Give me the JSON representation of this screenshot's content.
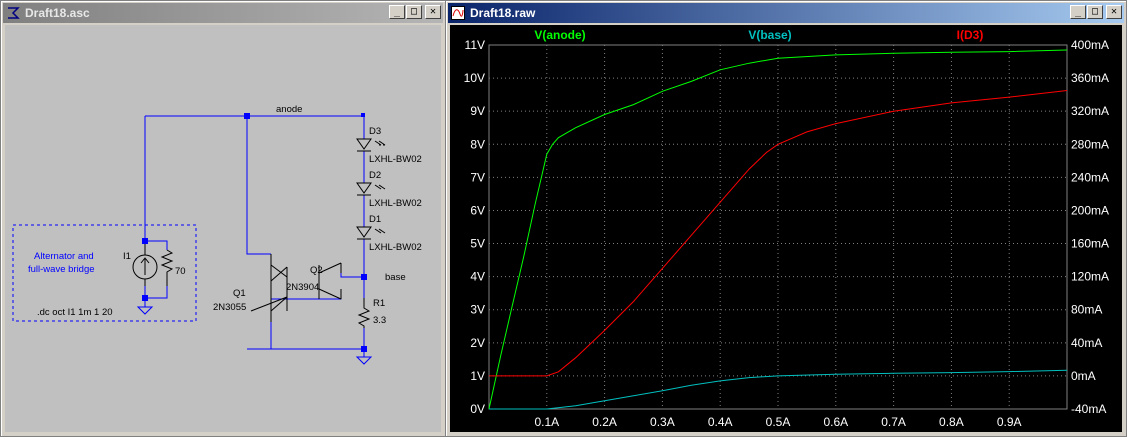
{
  "schematic_window": {
    "title": "Draft18.asc",
    "min_glyph": "_",
    "max_glyph": "□",
    "close_glyph": "✕",
    "components": {
      "net_anode": "anode",
      "net_base": "base",
      "d3_ref": "D3",
      "d3_model": "LXHL-BW02",
      "d2_ref": "D2",
      "d2_model": "LXHL-BW02",
      "d1_ref": "D1",
      "d1_model": "LXHL-BW02",
      "q1_ref": "Q1",
      "q1_model": "2N3055",
      "q2_ref": "Q2",
      "q2_model": "2N3904",
      "r1_ref": "R1",
      "r1_value": "3.3",
      "i1_ref": "I1",
      "r_shunt_value": "70",
      "comment_line1": "Alternator and",
      "comment_line2": "full-wave bridge",
      "directive": ".dc oct I1 1m 1 20"
    },
    "colors": {
      "wire": "#0000ff",
      "background": "#c0c0c0",
      "comment": "#0000ff",
      "text": "#000000"
    }
  },
  "plot_window": {
    "title": "Draft18.raw",
    "min_glyph": "_",
    "max_glyph": "□",
    "close_glyph": "✕",
    "legend": [
      {
        "name": "V(anode)",
        "color": "#00ff00"
      },
      {
        "name": "V(base)",
        "color": "#00c0c0"
      },
      {
        "name": "I(D3)",
        "color": "#ff0000"
      }
    ],
    "left_ticks": [
      "0V",
      "1V",
      "2V",
      "3V",
      "4V",
      "5V",
      "6V",
      "7V",
      "8V",
      "9V",
      "10V",
      "11V"
    ],
    "right_ticks": [
      "-40mA",
      "0mA",
      "40mA",
      "80mA",
      "120mA",
      "160mA",
      "200mA",
      "240mA",
      "280mA",
      "320mA",
      "360mA",
      "400mA"
    ],
    "x_ticks": [
      "0.1A",
      "0.2A",
      "0.3A",
      "0.4A",
      "0.5A",
      "0.6A",
      "0.7A",
      "0.8A",
      "0.9A"
    ],
    "colors": {
      "background": "#000000",
      "grid": "#808080",
      "axis_text": "#ffffff"
    }
  },
  "chart_data": {
    "type": "line",
    "xlabel": "",
    "ylabel": "",
    "xlim": [
      0,
      1.0
    ],
    "ylim_left": [
      0,
      11
    ],
    "ylim_right": [
      -40,
      400
    ],
    "grid": true,
    "series": [
      {
        "name": "V(anode)",
        "axis": "left",
        "unit": "V",
        "color": "#00ff00",
        "x": [
          0,
          0.02,
          0.04,
          0.06,
          0.08,
          0.1,
          0.11,
          0.12,
          0.15,
          0.2,
          0.25,
          0.3,
          0.35,
          0.4,
          0.45,
          0.5,
          0.6,
          0.7,
          0.8,
          0.9,
          1.0
        ],
        "y": [
          0,
          1.6,
          3.1,
          4.6,
          6.2,
          7.7,
          8.0,
          8.2,
          8.5,
          8.9,
          9.2,
          9.6,
          9.9,
          10.25,
          10.45,
          10.6,
          10.7,
          10.75,
          10.78,
          10.8,
          10.85
        ]
      },
      {
        "name": "V(base)",
        "axis": "left",
        "unit": "V",
        "color": "#00c0c0",
        "x": [
          0,
          0.1,
          0.15,
          0.2,
          0.25,
          0.3,
          0.35,
          0.4,
          0.45,
          0.5,
          0.6,
          0.7,
          0.8,
          0.9,
          1.0
        ],
        "y": [
          0,
          0,
          0.1,
          0.25,
          0.4,
          0.55,
          0.72,
          0.85,
          0.95,
          1.0,
          1.05,
          1.08,
          1.1,
          1.13,
          1.17
        ]
      },
      {
        "name": "I(D3)",
        "axis": "right",
        "unit": "mA",
        "color": "#ff0000",
        "x": [
          0,
          0.1,
          0.12,
          0.15,
          0.2,
          0.25,
          0.3,
          0.35,
          0.4,
          0.45,
          0.48,
          0.5,
          0.55,
          0.6,
          0.7,
          0.8,
          0.9,
          1.0
        ],
        "y": [
          0,
          0,
          5,
          22,
          55,
          90,
          130,
          170,
          210,
          250,
          270,
          280,
          295,
          305,
          320,
          330,
          337,
          345
        ]
      }
    ]
  }
}
